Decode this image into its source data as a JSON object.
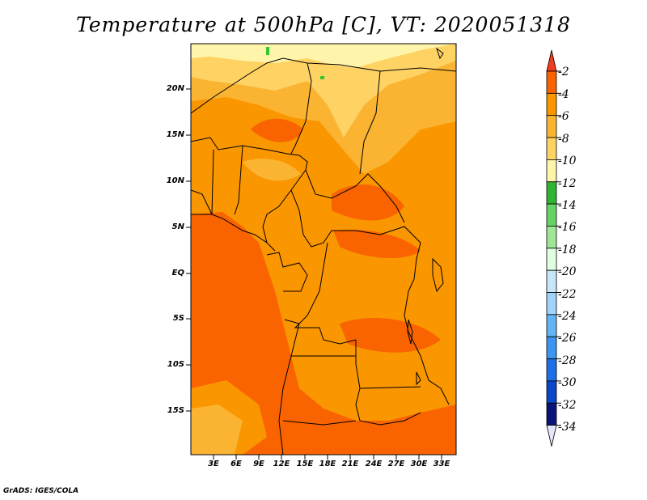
{
  "title": "Temperature at 500hPa [C], VT: 2020051318",
  "credit": "GrADS: IGES/COLA",
  "lat_ticks": [
    "20N",
    "15N",
    "10N",
    "5N",
    "EQ",
    "5S",
    "10S",
    "15S"
  ],
  "lon_ticks": [
    "3E",
    "6E",
    "9E",
    "12E",
    "15E",
    "18E",
    "21E",
    "24E",
    "27E",
    "30E",
    "33E"
  ],
  "colorbar": {
    "labels": [
      "-2",
      "-4",
      "-6",
      "-8",
      "-10",
      "-12",
      "-14",
      "-16",
      "-18",
      "-20",
      "-22",
      "-24",
      "-26",
      "-28",
      "-30",
      "-32",
      "-34"
    ],
    "colors": [
      "#f03c1e",
      "#fa6400",
      "#fa9600",
      "#fab432",
      "#ffd264",
      "#fff5aa",
      "#32b432",
      "#64d264",
      "#a0e696",
      "#e0ffe0",
      "#c8e6fa",
      "#a0d2fa",
      "#64b4f5",
      "#3c96f0",
      "#1e6ee6",
      "#0a46c8",
      "#0a1478",
      "#e6e6fa"
    ]
  },
  "map_colors": {
    "c_m4": "#fa6400",
    "c_m6": "#fa9600",
    "c_m8": "#fab432",
    "c_m10": "#ffd264",
    "c_m12": "#fff5aa",
    "c_green": "#32c832"
  }
}
